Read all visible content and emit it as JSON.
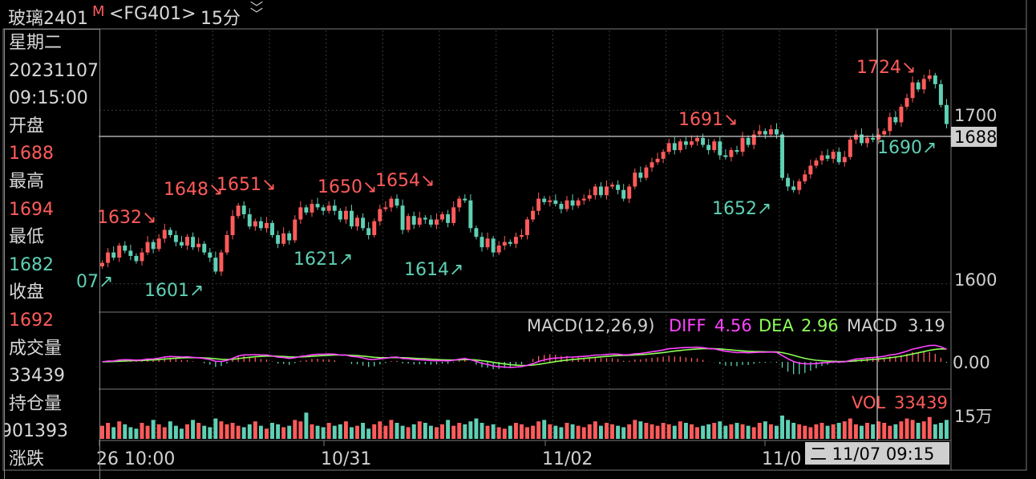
{
  "header": {
    "name": "玻璃2401",
    "marker": "M",
    "code": "<FG401>",
    "period": "15分",
    "chevron_icon": "double-chevron-down-icon"
  },
  "info_panel": {
    "weekday": "星期二",
    "date": "20231107",
    "time": "09:15:00",
    "open_label": "开盘",
    "open_value": "1688",
    "high_label": "最高",
    "high_value": "1694",
    "low_label": "最低",
    "low_value": "1682",
    "close_label": "收盘",
    "close_value": "1692",
    "volume_label": "成交量",
    "volume_value": "33439",
    "oi_label": "持仓量",
    "oi_value": "901393",
    "change_label": "涨跌"
  },
  "colors": {
    "up": "#ff5b5b",
    "down": "#5fd0b4",
    "diff": "#ff44ff",
    "dea": "#8cff58",
    "grid": "#3a3a3a",
    "axis_border": "#7a7a7a",
    "crosshair": "#cfcfcf",
    "cursor_box_bg": "#cfcfcf",
    "cursor_box_text": "#000000"
  },
  "chart_data": [
    {
      "type": "candlestick",
      "title": "",
      "ylim": [
        1585,
        1745
      ],
      "y_ticks": [
        1600,
        1700
      ],
      "x_ticks": [
        "26 10:00",
        "10/31",
        "11/02",
        "11/0"
      ],
      "cursor_price": "1688",
      "cursor_time": "二 11/07 09:15",
      "annotations": [
        {
          "text": "1632↘",
          "kind": "high"
        },
        {
          "text": "07↗",
          "kind": "low"
        },
        {
          "text": "1601↗",
          "kind": "low"
        },
        {
          "text": "1648↘",
          "kind": "high"
        },
        {
          "text": "1651↘",
          "kind": "high"
        },
        {
          "text": "1621↗",
          "kind": "low"
        },
        {
          "text": "1650↘",
          "kind": "high"
        },
        {
          "text": "1654↘",
          "kind": "high"
        },
        {
          "text": "1614↗",
          "kind": "low"
        },
        {
          "text": "1691↘",
          "kind": "high"
        },
        {
          "text": "1652↗",
          "kind": "low"
        },
        {
          "text": "1724↘",
          "kind": "high"
        },
        {
          "text": "1690↗",
          "kind": "low"
        }
      ],
      "closes": [
        1612,
        1618,
        1615,
        1622,
        1619,
        1616,
        1613,
        1618,
        1624,
        1620,
        1626,
        1631,
        1628,
        1624,
        1622,
        1627,
        1621,
        1623,
        1618,
        1615,
        1607,
        1618,
        1628,
        1639,
        1645,
        1640,
        1633,
        1636,
        1632,
        1635,
        1628,
        1623,
        1629,
        1625,
        1637,
        1644,
        1641,
        1646,
        1644,
        1642,
        1645,
        1642,
        1637,
        1642,
        1633,
        1638,
        1632,
        1628,
        1636,
        1643,
        1644,
        1649,
        1645,
        1631,
        1639,
        1634,
        1638,
        1637,
        1634,
        1637,
        1640,
        1635,
        1644,
        1649,
        1648,
        1632,
        1627,
        1621,
        1626,
        1618,
        1622,
        1624,
        1623,
        1627,
        1628,
        1637,
        1642,
        1649,
        1647,
        1648,
        1646,
        1643,
        1648,
        1645,
        1648,
        1649,
        1651,
        1656,
        1651,
        1656,
        1657,
        1654,
        1649,
        1656,
        1664,
        1661,
        1667,
        1670,
        1672,
        1676,
        1681,
        1677,
        1682,
        1680,
        1682,
        1684,
        1680,
        1677,
        1682,
        1674,
        1673,
        1677,
        1676,
        1684,
        1680,
        1686,
        1688,
        1686,
        1689,
        1686,
        1661,
        1656,
        1654,
        1659,
        1663,
        1668,
        1671,
        1674,
        1672,
        1676,
        1670,
        1673,
        1683,
        1686,
        1681,
        1684,
        1683,
        1686,
        1688,
        1696,
        1693,
        1702,
        1707,
        1716,
        1712,
        1718,
        1720,
        1715,
        1703,
        1692
      ],
      "volumes": [
        9,
        11,
        8,
        12,
        10,
        8,
        7,
        11,
        9,
        13,
        10,
        8,
        12,
        9,
        7,
        10,
        13,
        11,
        9,
        8,
        14,
        12,
        10,
        11,
        9,
        8,
        10,
        12,
        9,
        7,
        11,
        10,
        8,
        9,
        13,
        12,
        18,
        10,
        9,
        8,
        11,
        9,
        10,
        12,
        8,
        9,
        11,
        7,
        10,
        12,
        9,
        13,
        11,
        9,
        8,
        10,
        12,
        11,
        9,
        8,
        10,
        13,
        9,
        11,
        10,
        12,
        14,
        11,
        9,
        10,
        8,
        7,
        9,
        11,
        10,
        8,
        9,
        12,
        13,
        10,
        9,
        8,
        11,
        10,
        9,
        8,
        10,
        12,
        9,
        11,
        10,
        9,
        8,
        10,
        13,
        12,
        11,
        10,
        9,
        11,
        10,
        9,
        12,
        11,
        10,
        8,
        9,
        10,
        11,
        12,
        9,
        10,
        11,
        10,
        9,
        8,
        11,
        12,
        10,
        9,
        16,
        13,
        11,
        10,
        9,
        8,
        10,
        11,
        9,
        10,
        11,
        12,
        14,
        10,
        9,
        11,
        10,
        12,
        11,
        9,
        10,
        12,
        14,
        13,
        11,
        12,
        15,
        10,
        11,
        13
      ],
      "x_tick_at": [
        0.5,
        20,
        40,
        60
      ],
      "day_separators": [
        10,
        20,
        30,
        40,
        50,
        60,
        70,
        80,
        90,
        100,
        110,
        120,
        130
      ]
    },
    {
      "type": "line",
      "title": "MACD(12,26,9)",
      "series_labels": [
        {
          "name": "DIFF",
          "value": "4.56"
        },
        {
          "name": "DEA",
          "value": "2.96"
        },
        {
          "name": "MACD",
          "value": "3.19"
        }
      ],
      "y_ticks": [
        "0.00"
      ]
    },
    {
      "type": "bar",
      "title": "VOL",
      "value": "33439",
      "y_ticks": [
        "15万"
      ]
    }
  ]
}
